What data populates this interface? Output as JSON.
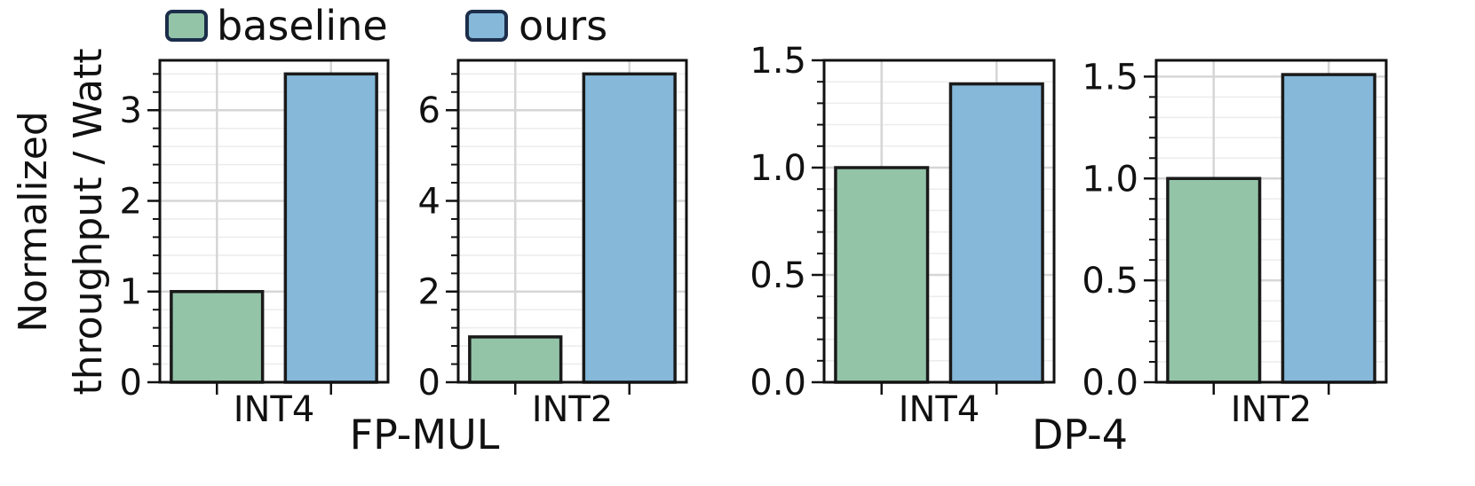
{
  "legend": {
    "items": [
      {
        "label": "baseline",
        "color": "#93c4a8"
      },
      {
        "label": "ours",
        "color": "#85b8d9"
      }
    ]
  },
  "ylabel": {
    "line1": "Normalized",
    "line2": "throughput / Watt"
  },
  "groups": [
    {
      "title": "FP-MUL"
    },
    {
      "title": "DP-4"
    }
  ],
  "chart_data": [
    {
      "type": "bar",
      "group": "FP-MUL",
      "categories": [
        "INT4"
      ],
      "series": [
        {
          "name": "baseline",
          "values": [
            1.0
          ]
        },
        {
          "name": "ours",
          "values": [
            3.4
          ]
        }
      ],
      "ylim": [
        0,
        3.55
      ],
      "yticks": [
        0,
        1,
        2,
        3
      ],
      "ytick_labels": [
        "0",
        "1",
        "2",
        "3"
      ],
      "grid": true
    },
    {
      "type": "bar",
      "group": "FP-MUL",
      "categories": [
        "INT2"
      ],
      "series": [
        {
          "name": "baseline",
          "values": [
            1.0
          ]
        },
        {
          "name": "ours",
          "values": [
            6.8
          ]
        }
      ],
      "ylim": [
        0,
        7.1
      ],
      "yticks": [
        0,
        2,
        4,
        6
      ],
      "ytick_labels": [
        "0",
        "2",
        "4",
        "6"
      ],
      "grid": true
    },
    {
      "type": "bar",
      "group": "DP-4",
      "categories": [
        "INT4"
      ],
      "series": [
        {
          "name": "baseline",
          "values": [
            1.0
          ]
        },
        {
          "name": "ours",
          "values": [
            1.39
          ]
        }
      ],
      "ylim": [
        0,
        1.5
      ],
      "yticks": [
        0,
        0.5,
        1.0,
        1.5
      ],
      "ytick_labels": [
        "0.0",
        "0.5",
        "1.0",
        "1.5"
      ],
      "grid": true
    },
    {
      "type": "bar",
      "group": "DP-4",
      "categories": [
        "INT2"
      ],
      "series": [
        {
          "name": "baseline",
          "values": [
            1.0
          ]
        },
        {
          "name": "ours",
          "values": [
            1.51
          ]
        }
      ],
      "ylim": [
        0,
        1.58
      ],
      "yticks": [
        0,
        0.5,
        1.0,
        1.5
      ],
      "ytick_labels": [
        "0.0",
        "0.5",
        "1.0",
        "1.5"
      ],
      "grid": true
    }
  ]
}
